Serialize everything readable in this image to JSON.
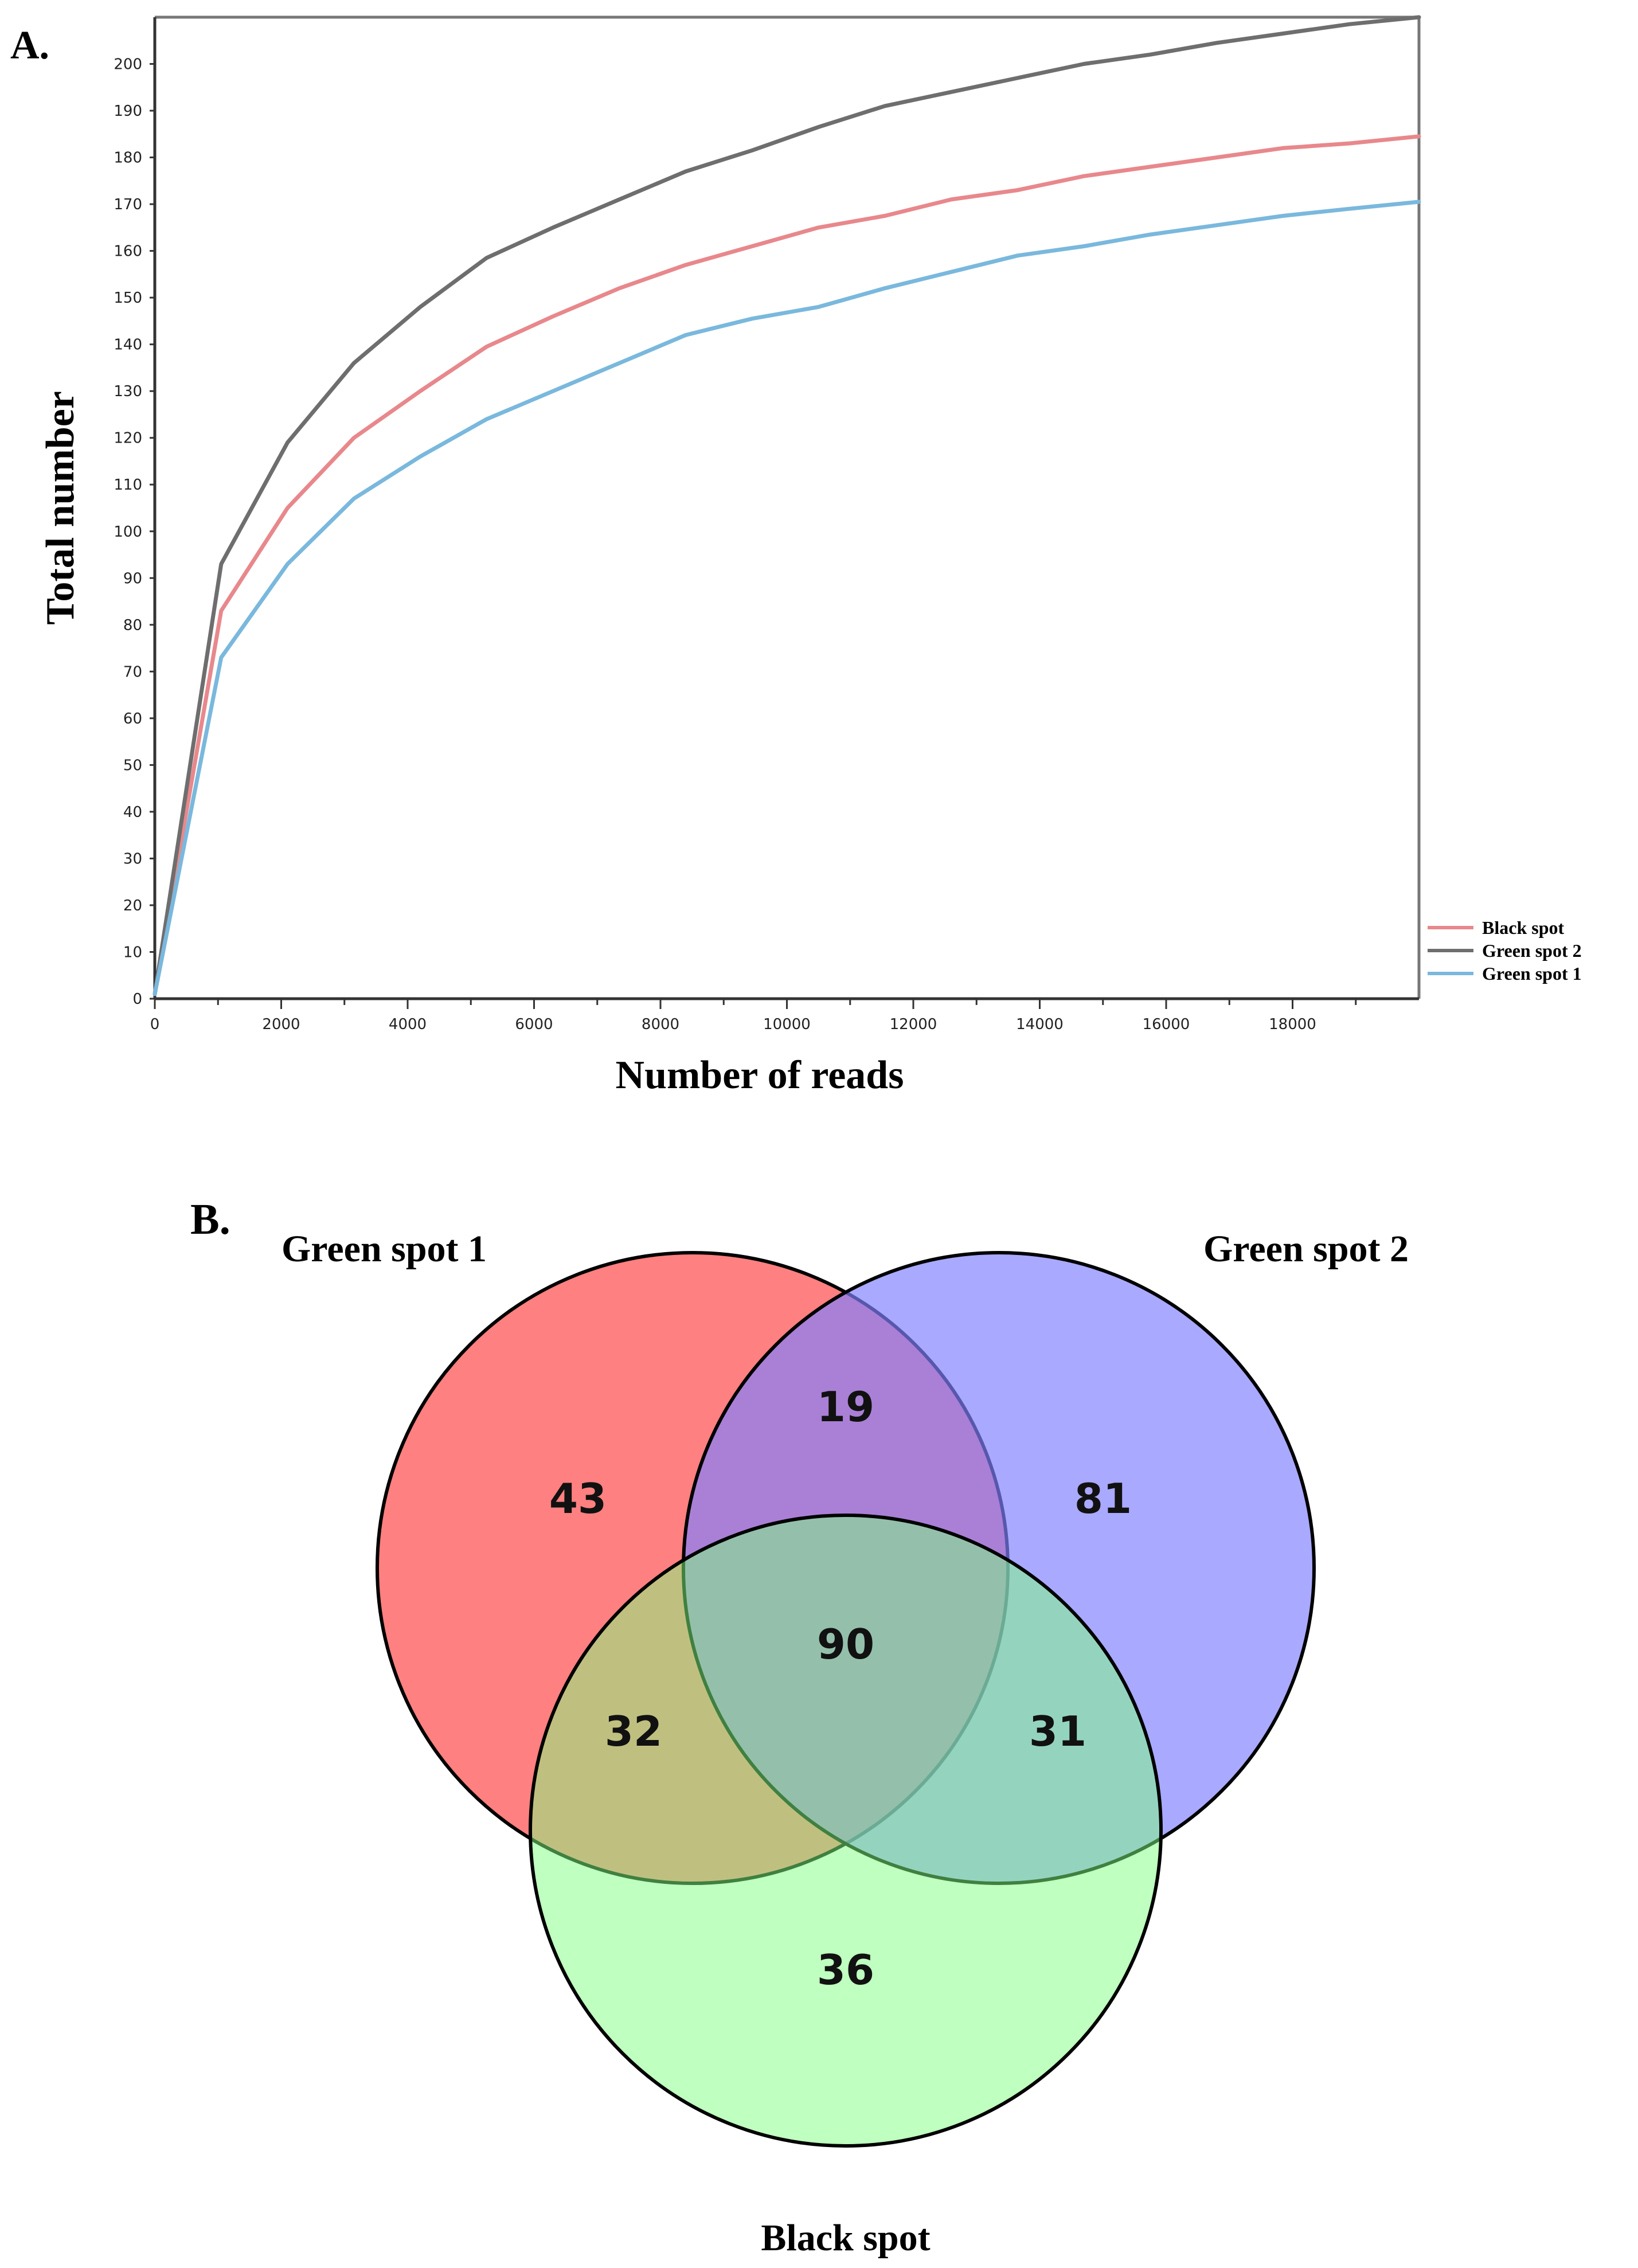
{
  "chart_data": [
    {
      "type": "line",
      "panel_label": "A.",
      "title": "",
      "xlabel": "Number of reads",
      "ylabel": "Total number",
      "xlim": [
        0,
        20000
      ],
      "ylim": [
        0,
        210
      ],
      "xticks": [
        0,
        2000,
        4000,
        6000,
        8000,
        10000,
        12000,
        14000,
        16000,
        18000
      ],
      "xtick_labels": [
        "0",
        "2000",
        "4000",
        "6000",
        "8000",
        "10000",
        "12000",
        "14000",
        "16000",
        "18000"
      ],
      "yticks": [
        0,
        10,
        20,
        30,
        40,
        50,
        60,
        70,
        80,
        90,
        100,
        110,
        120,
        130,
        140,
        150,
        160,
        170,
        180,
        190,
        200
      ],
      "ytick_labels": [
        "0",
        "10",
        "20",
        "30",
        "40",
        "50",
        "60",
        "70",
        "80",
        "90",
        "100",
        "110",
        "120",
        "130",
        "140",
        "150",
        "160",
        "170",
        "180",
        "190",
        "200"
      ],
      "grid": false,
      "legend_position": "bottom-right",
      "x": [
        0,
        1050,
        2100,
        3150,
        4200,
        5250,
        6300,
        7350,
        8400,
        9450,
        10500,
        11550,
        12600,
        13650,
        14700,
        15750,
        16800,
        17850,
        18900,
        20000
      ],
      "series": [
        {
          "name": "Black spot",
          "color": "#e8888c",
          "values": [
            1,
            83,
            105,
            120,
            130,
            139.5,
            146,
            152,
            157,
            161,
            165,
            167.5,
            171,
            173,
            176,
            178,
            180,
            182,
            183,
            184.5
          ]
        },
        {
          "name": "Green spot 2",
          "color": "#6e6e6e",
          "values": [
            1,
            93,
            119,
            136,
            148,
            158.5,
            165,
            171,
            177,
            181.5,
            186.5,
            191,
            194,
            197,
            200,
            202,
            204.5,
            206.5,
            208.5,
            210
          ]
        },
        {
          "name": "Green spot 1",
          "color": "#7ab8dd",
          "values": [
            1,
            73,
            93,
            107,
            116,
            124,
            130,
            136,
            142,
            145.5,
            148,
            152,
            155.5,
            159,
            161,
            163.5,
            165.5,
            167.5,
            169,
            170.5
          ]
        }
      ]
    },
    {
      "type": "venn",
      "panel_label": "B.",
      "sets": [
        {
          "name": "Green spot 1",
          "color": "#ff8080"
        },
        {
          "name": "Green spot 2",
          "color": "#8080ff"
        },
        {
          "name": "Black spot",
          "color": "#80ff80"
        }
      ],
      "regions": [
        {
          "sets": [
            "Green spot 1"
          ],
          "value": 43
        },
        {
          "sets": [
            "Green spot 2"
          ],
          "value": 81
        },
        {
          "sets": [
            "Black spot"
          ],
          "value": 36
        },
        {
          "sets": [
            "Green spot 1",
            "Green spot 2"
          ],
          "value": 19
        },
        {
          "sets": [
            "Green spot 1",
            "Black spot"
          ],
          "value": 32
        },
        {
          "sets": [
            "Green spot 2",
            "Black spot"
          ],
          "value": 31
        },
        {
          "sets": [
            "Green spot 1",
            "Green spot 2",
            "Black spot"
          ],
          "value": 90
        }
      ]
    }
  ]
}
